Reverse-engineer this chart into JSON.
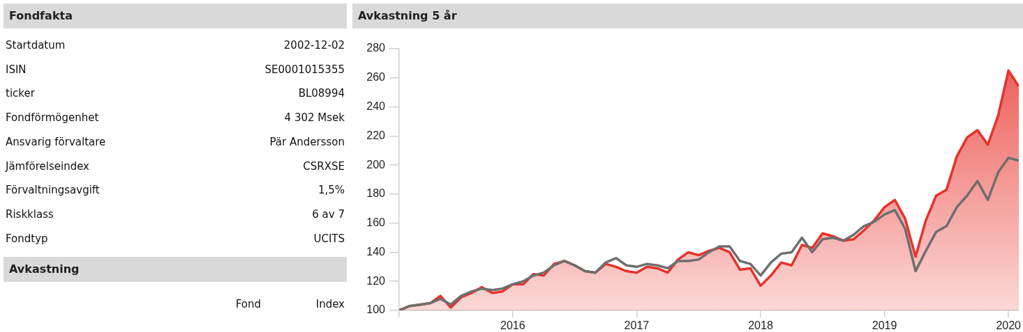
{
  "chart_data": [
    {
      "type": "other",
      "title": "Fondfakta",
      "annotations": [
        "Startdatum",
        "2002-12-02",
        "ISIN",
        "SE0001015355",
        "ticker",
        "BL08994",
        "Fondförmögenhet",
        "4 302 Msek",
        "Ansvarig förvaltare",
        "Pär Andersson",
        "Jämförelseindex",
        "CSRXSE",
        "Förvaltningsavgift",
        "1,5%",
        "Riskklass",
        "6 av 7",
        "Fondtyp",
        "UCITS"
      ]
    },
    {
      "type": "other",
      "title": "Avkastning",
      "annotations": [
        "Fond",
        "Index"
      ]
    },
    {
      "type": "line",
      "title": "Avkastning 5 år",
      "x": [
        "2015-02",
        "2015-03",
        "2015-04",
        "2015-05",
        "2015-06",
        "2015-07",
        "2015-08",
        "2015-09",
        "2015-10",
        "2015-11",
        "2015-12",
        "2016-01",
        "2016-02",
        "2016-03",
        "2016-04",
        "2016-05",
        "2016-06",
        "2016-07",
        "2016-08",
        "2016-09",
        "2016-10",
        "2016-11",
        "2016-12",
        "2017-01",
        "2017-02",
        "2017-03",
        "2017-04",
        "2017-05",
        "2017-06",
        "2017-07",
        "2017-08",
        "2017-09",
        "2017-10",
        "2017-11",
        "2017-12",
        "2018-01",
        "2018-02",
        "2018-03",
        "2018-04",
        "2018-05",
        "2018-06",
        "2018-07",
        "2018-08",
        "2018-09",
        "2018-10",
        "2018-11",
        "2018-12",
        "2019-01",
        "2019-02",
        "2019-03",
        "2019-04",
        "2019-05",
        "2019-06",
        "2019-07",
        "2019-08",
        "2019-09",
        "2019-10",
        "2019-11",
        "2019-12",
        "2020-01",
        "2020-02"
      ],
      "series": [
        {
          "type": "area",
          "color": "#e8312a",
          "values": [
            100,
            103,
            104,
            105,
            110,
            102,
            109,
            112,
            116,
            112,
            113,
            118,
            118,
            125,
            124,
            132,
            134,
            131,
            127,
            126,
            132,
            130,
            127,
            126,
            130,
            129,
            126,
            135,
            140,
            138,
            141,
            143,
            140,
            128,
            129,
            117,
            124,
            133,
            131,
            145,
            143,
            153,
            151,
            148,
            149,
            155,
            162,
            171,
            176,
            163,
            137,
            162,
            179,
            183,
            206,
            219,
            224,
            214,
            234,
            265,
            254
          ]
        },
        {
          "type": "line",
          "color": "#6e6e6e",
          "values": [
            100,
            103,
            104,
            105,
            108,
            104,
            110,
            113,
            115,
            114,
            115,
            118,
            120,
            124,
            126,
            131,
            134,
            131,
            127,
            126,
            133,
            136,
            131,
            130,
            132,
            131,
            129,
            134,
            134,
            135,
            140,
            144,
            144,
            134,
            132,
            124,
            133,
            139,
            140,
            150,
            140,
            149,
            150,
            148,
            152,
            158,
            161,
            166,
            169,
            156,
            127,
            141,
            154,
            158,
            171,
            179,
            189,
            176,
            195,
            205,
            203
          ]
        }
      ],
      "xlim": [
        "2015-02",
        "2020-02"
      ],
      "xticks": [
        {
          "value": "2015-02",
          "label": null
        },
        "2016",
        "2017",
        "2018",
        "2019",
        "2020"
      ],
      "ylim": [
        100,
        280
      ],
      "yticks": [
        100,
        120,
        140,
        160,
        180,
        200,
        220,
        240,
        260,
        280
      ],
      "grid": false,
      "legend": false,
      "marker": "none",
      "line_style": "solid"
    }
  ]
}
